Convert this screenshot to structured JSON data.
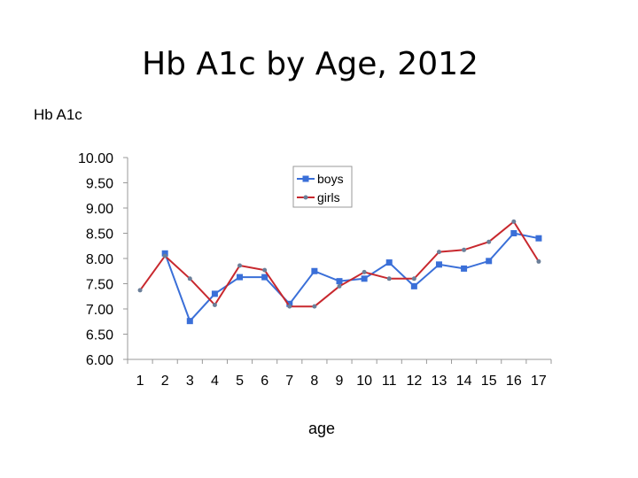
{
  "chart_data": {
    "type": "line",
    "title": "Hb A1c by Age, 2012",
    "ylabel": "Hb A1c",
    "xlabel": "age",
    "categories": [
      "1",
      "2",
      "3",
      "4",
      "5",
      "6",
      "7",
      "8",
      "9",
      "10",
      "11",
      "12",
      "13",
      "14",
      "15",
      "16",
      "17"
    ],
    "ylim": [
      6.0,
      10.0
    ],
    "yticks": [
      "10.00",
      "9.50",
      "9.00",
      "8.50",
      "8.00",
      "7.50",
      "7.00",
      "6.50",
      "6.00"
    ],
    "legend_position": "top-center",
    "series": [
      {
        "name": "boys",
        "color": "#3a6fd8",
        "marker": "square",
        "values": [
          null,
          8.1,
          6.76,
          7.3,
          7.63,
          7.63,
          7.1,
          7.75,
          7.55,
          7.6,
          7.92,
          7.45,
          7.88,
          7.8,
          7.95,
          8.5,
          8.4
        ]
      },
      {
        "name": "girls",
        "color": "#c8282e",
        "marker": "dot",
        "values": [
          7.37,
          8.05,
          7.6,
          7.08,
          7.86,
          7.77,
          7.05,
          7.05,
          7.45,
          7.73,
          7.6,
          7.6,
          8.13,
          8.17,
          8.33,
          8.73,
          7.94
        ]
      }
    ]
  }
}
